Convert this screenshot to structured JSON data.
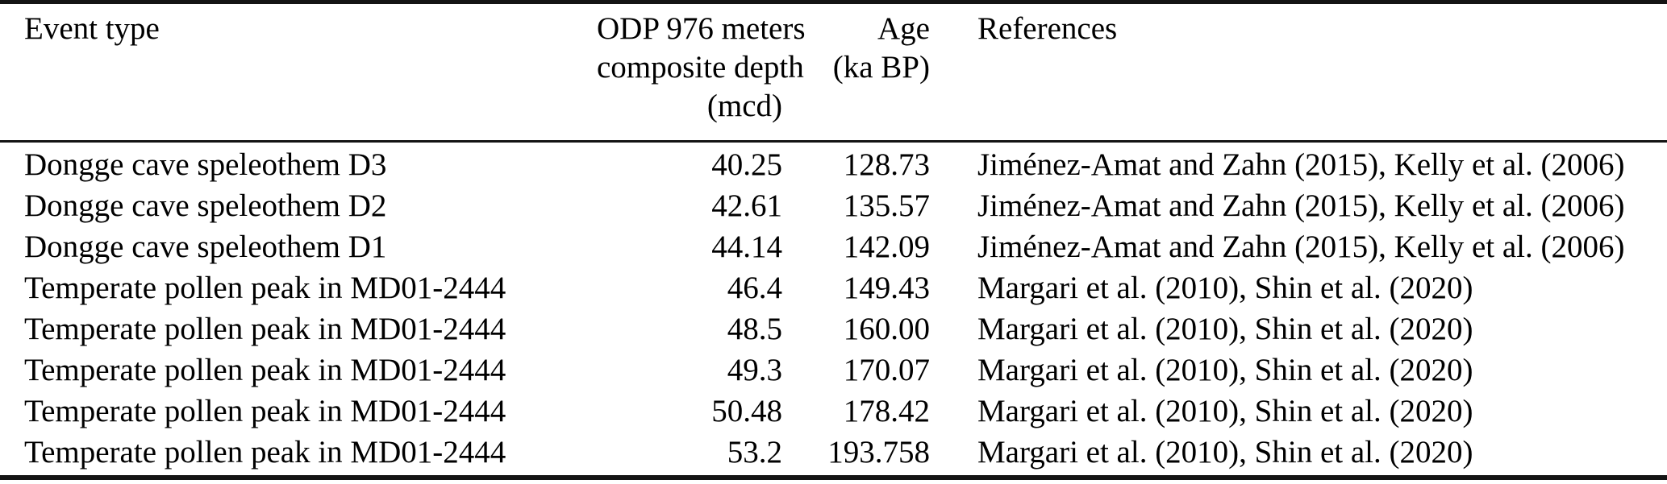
{
  "page": {
    "background": "#ffffff",
    "text_color": "#000000",
    "rule_color": "#141414"
  },
  "table": {
    "header": {
      "event_type": "Event type",
      "depth_line1": "ODP 976 meters",
      "depth_line2": "composite depth",
      "depth_line3": "(mcd)",
      "age_line1": "Age",
      "age_line2": "(ka BP)",
      "references": "References"
    },
    "rows": [
      {
        "event": "Dongge cave speleothem D3",
        "depth": "40.25",
        "age": "128.73",
        "refs": "Jiménez-Amat and Zahn (2015), Kelly et al. (2006)"
      },
      {
        "event": "Dongge cave speleothem D2",
        "depth": "42.61",
        "age": "135.57",
        "refs": "Jiménez-Amat and Zahn (2015), Kelly et al. (2006)"
      },
      {
        "event": "Dongge cave speleothem D1",
        "depth": "44.14",
        "age": "142.09",
        "refs": "Jiménez-Amat and Zahn (2015), Kelly et al. (2006)"
      },
      {
        "event": "Temperate pollen peak in MD01-2444",
        "depth": "46.4",
        "age": "149.43",
        "refs": "Margari et al. (2010), Shin et al. (2020)"
      },
      {
        "event": "Temperate pollen peak in MD01-2444",
        "depth": "48.5",
        "age": "160.00",
        "refs": "Margari et al. (2010), Shin et al. (2020)"
      },
      {
        "event": "Temperate pollen peak in MD01-2444",
        "depth": "49.3",
        "age": "170.07",
        "refs": "Margari et al. (2010), Shin et al. (2020)"
      },
      {
        "event": "Temperate pollen peak in MD01-2444",
        "depth": "50.48",
        "age": "178.42",
        "refs": "Margari et al. (2010), Shin et al. (2020)"
      },
      {
        "event": "Temperate pollen peak in MD01-2444",
        "depth": "53.2",
        "age": "193.758",
        "refs": "Margari et al. (2010), Shin et al. (2020)"
      }
    ]
  },
  "chart_data": {
    "type": "table",
    "columns": [
      "Event type",
      "ODP 976 meters composite depth (mcd)",
      "Age (ka BP)",
      "References"
    ],
    "rows": [
      [
        "Dongge cave speleothem D3",
        40.25,
        128.73,
        "Jiménez-Amat and Zahn (2015), Kelly et al. (2006)"
      ],
      [
        "Dongge cave speleothem D2",
        42.61,
        135.57,
        "Jiménez-Amat and Zahn (2015), Kelly et al. (2006)"
      ],
      [
        "Dongge cave speleothem D1",
        44.14,
        142.09,
        "Jiménez-Amat and Zahn (2015), Kelly et al. (2006)"
      ],
      [
        "Temperate pollen peak in MD01-2444",
        46.4,
        149.43,
        "Margari et al. (2010), Shin et al. (2020)"
      ],
      [
        "Temperate pollen peak in MD01-2444",
        48.5,
        160.0,
        "Margari et al. (2010), Shin et al. (2020)"
      ],
      [
        "Temperate pollen peak in MD01-2444",
        49.3,
        170.07,
        "Margari et al. (2010), Shin et al. (2020)"
      ],
      [
        "Temperate pollen peak in MD01-2444",
        50.48,
        178.42,
        "Margari et al. (2010), Shin et al. (2020)"
      ],
      [
        "Temperate pollen peak in MD01-2444",
        53.2,
        193.758,
        "Margari et al. (2010), Shin et al. (2020)"
      ]
    ]
  }
}
